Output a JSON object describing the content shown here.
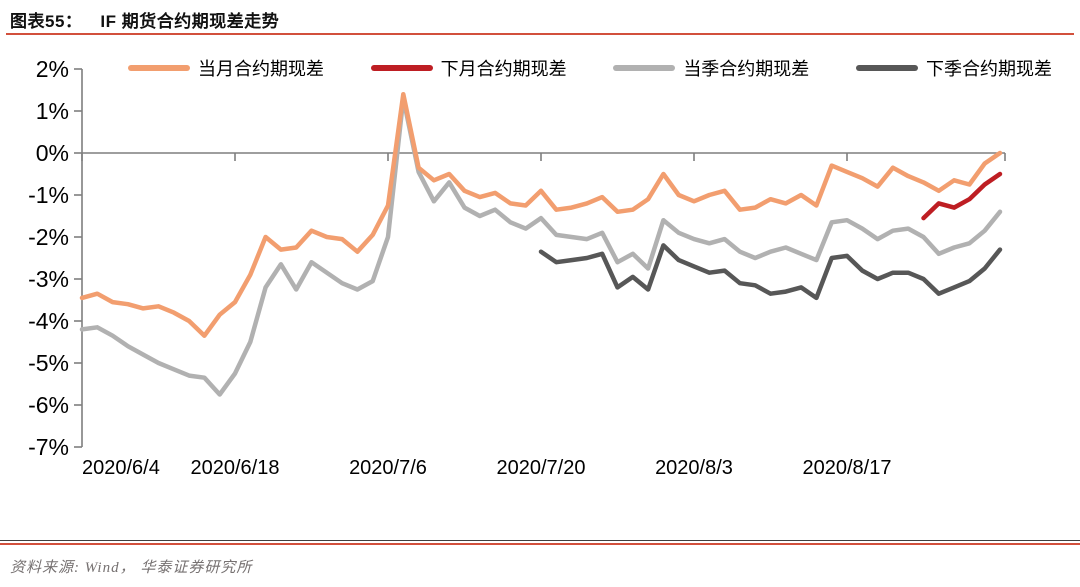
{
  "header": {
    "figure_label": "图表55：",
    "title": "IF 期货合约期现差走势"
  },
  "legend": [
    {
      "label": "当月合约期现差",
      "color": "#f29e6f"
    },
    {
      "label": "下月合约期现差",
      "color": "#be1e23"
    },
    {
      "label": "当季合约期现差",
      "color": "#b1b1b1"
    },
    {
      "label": "下季合约期现差",
      "color": "#575757"
    }
  ],
  "chart_data": {
    "type": "line",
    "title": "IF 期货合约期现差走势",
    "xlabel": "",
    "ylabel": "",
    "y_unit": "%",
    "ylim": [
      -7,
      2
    ],
    "y_ticks": [
      "2%",
      "1%",
      "0%",
      "-1%",
      "-2%",
      "-3%",
      "-4%",
      "-5%",
      "-6%",
      "-7%"
    ],
    "n_points": 61,
    "x_tick_indices": [
      0,
      10,
      20,
      30,
      40,
      50
    ],
    "x_tick_labels": [
      "2020/6/4",
      "2020/6/18",
      "2020/7/6",
      "2020/7/20",
      "2020/8/3",
      "2020/8/17"
    ],
    "grid": "zero-axis-only",
    "legend_position": "top",
    "series": [
      {
        "name": "当月合约期现差",
        "color": "#f29e6f",
        "start_index": 0,
        "values": [
          -3.45,
          -3.35,
          -3.55,
          -3.6,
          -3.7,
          -3.65,
          -3.8,
          -4.0,
          -4.35,
          -3.85,
          -3.55,
          -2.9,
          -2.0,
          -2.3,
          -2.25,
          -1.85,
          -2.0,
          -2.05,
          -2.35,
          -1.95,
          -1.25,
          1.4,
          -0.35,
          -0.65,
          -0.5,
          -0.9,
          -1.05,
          -0.95,
          -1.2,
          -1.25,
          -0.9,
          -1.35,
          -1.3,
          -1.2,
          -1.05,
          -1.4,
          -1.35,
          -1.1,
          -0.5,
          -1.0,
          -1.15,
          -1.0,
          -0.9,
          -1.35,
          -1.3,
          -1.1,
          -1.2,
          -1.0,
          -1.25,
          -0.3,
          -0.45,
          -0.6,
          -0.8,
          -0.35,
          -0.55,
          -0.7,
          -0.9,
          -0.65,
          -0.75,
          -0.25,
          0.0
        ]
      },
      {
        "name": "下月合约期现差",
        "color": "#be1e23",
        "start_index": 55,
        "values": [
          -1.55,
          -1.2,
          -1.3,
          -1.1,
          -0.75,
          -0.5
        ]
      },
      {
        "name": "当季合约期现差",
        "color": "#b1b1b1",
        "start_index": 0,
        "values": [
          -4.2,
          -4.15,
          -4.35,
          -4.6,
          -4.8,
          -5.0,
          -5.15,
          -5.3,
          -5.35,
          -5.75,
          -5.25,
          -4.5,
          -3.2,
          -2.65,
          -3.25,
          -2.6,
          -2.85,
          -3.1,
          -3.25,
          -3.05,
          -2.0,
          1.3,
          -0.45,
          -1.15,
          -0.7,
          -1.3,
          -1.5,
          -1.35,
          -1.65,
          -1.8,
          -1.55,
          -1.95,
          -2.0,
          -2.05,
          -1.9,
          -2.6,
          -2.4,
          -2.75,
          -1.6,
          -1.9,
          -2.05,
          -2.15,
          -2.05,
          -2.35,
          -2.5,
          -2.35,
          -2.25,
          -2.4,
          -2.55,
          -1.65,
          -1.6,
          -1.8,
          -2.05,
          -1.85,
          -1.8,
          -2.0,
          -2.4,
          -2.25,
          -2.15,
          -1.85,
          -1.4
        ]
      },
      {
        "name": "下季合约期现差",
        "color": "#575757",
        "start_index": 30,
        "values": [
          -2.35,
          -2.6,
          -2.55,
          -2.5,
          -2.4,
          -3.2,
          -2.95,
          -3.25,
          -2.2,
          -2.55,
          -2.7,
          -2.85,
          -2.8,
          -3.1,
          -3.15,
          -3.35,
          -3.3,
          -3.2,
          -3.45,
          -2.5,
          -2.45,
          -2.8,
          -3.0,
          -2.85,
          -2.85,
          -3.0,
          -3.35,
          -3.2,
          -3.05,
          -2.75,
          -2.3
        ]
      }
    ]
  },
  "footer": {
    "source": "资料来源: Wind， 华泰证券研究所"
  },
  "colors": {
    "accent_rule": "#d2503c",
    "axis": "#7f7f7f",
    "tick_text": "#000000",
    "source_text": "#767171"
  }
}
